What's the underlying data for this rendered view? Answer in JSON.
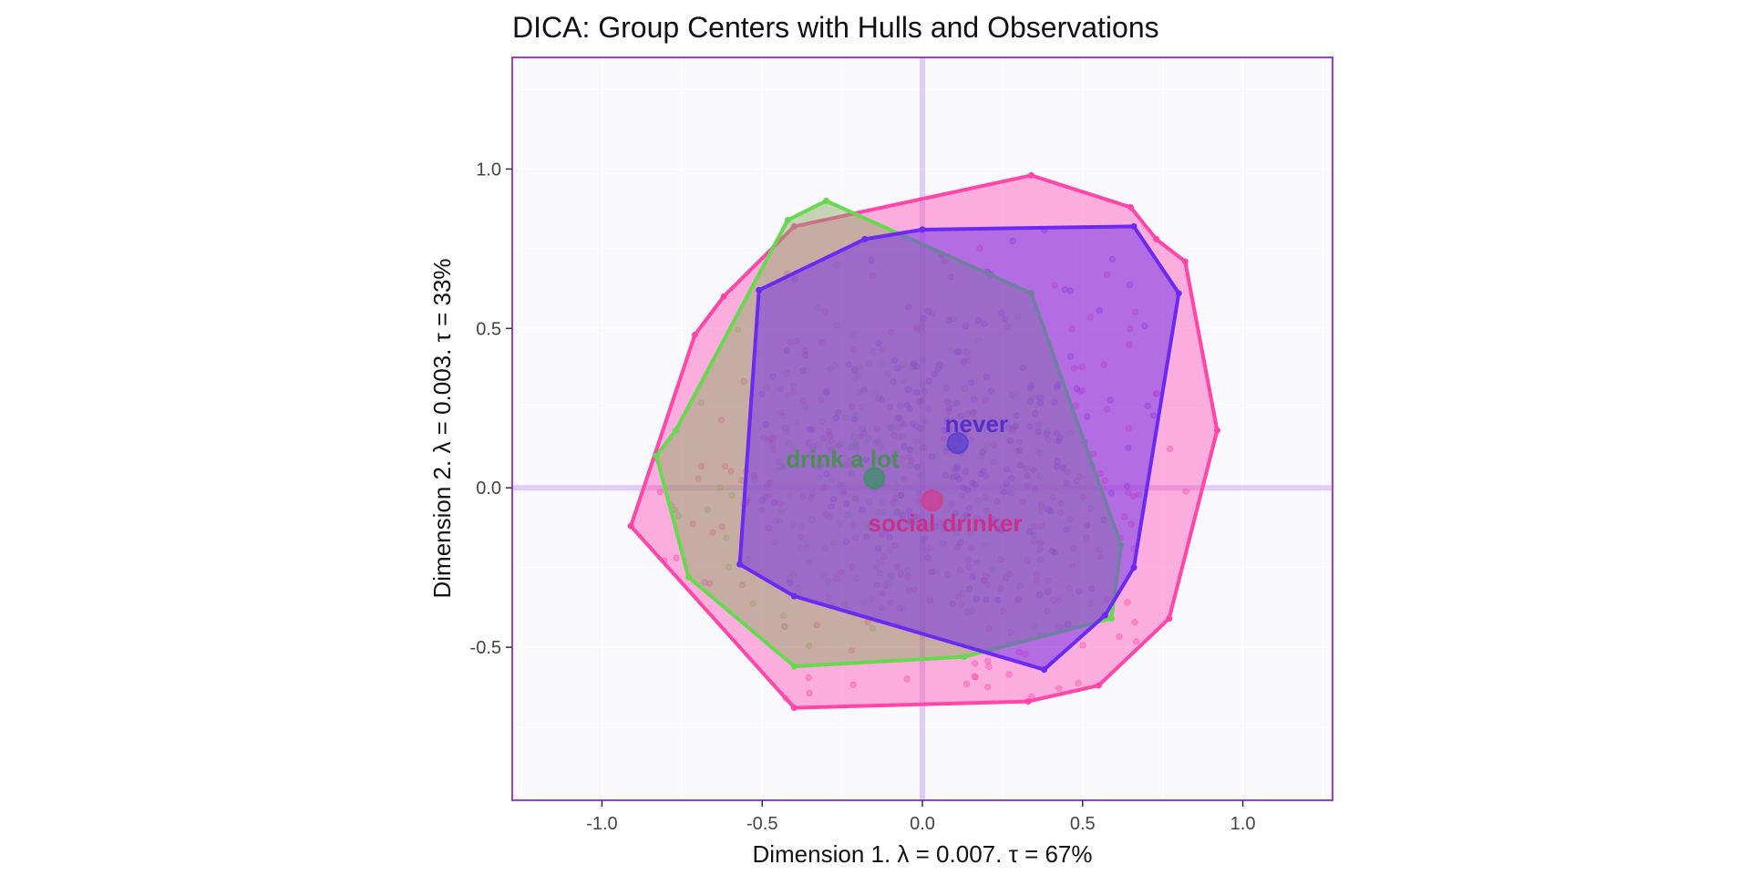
{
  "chart_data": {
    "type": "scatter",
    "title": "DICA: Group Centers with Hulls and Observations",
    "xlabel": "Dimension 1.   λ = 0.007.  τ = 67%",
    "ylabel": "Dimension 2.   λ = 0.003.  τ = 33%",
    "xlim": [
      -1.28,
      1.28
    ],
    "ylim": [
      -0.98,
      1.35
    ],
    "x_ticks": [
      -1.0,
      -0.5,
      0.0,
      0.5,
      1.0
    ],
    "x_tick_labels": [
      "-1.0",
      "-0.5",
      "0.0",
      "0.5",
      "1.0"
    ],
    "y_ticks": [
      -0.5,
      0.0,
      0.5,
      1.0
    ],
    "y_tick_labels": [
      "-0.5",
      "0.0",
      "0.5",
      "1.0"
    ],
    "grid": true,
    "series": [
      {
        "name": "social drinker",
        "color": "#ff3fa6",
        "center": [
          0.03,
          -0.04
        ],
        "hull": [
          [
            -0.91,
            -0.12
          ],
          [
            -0.71,
            0.48
          ],
          [
            -0.62,
            0.6
          ],
          [
            -0.4,
            0.82
          ],
          [
            0.34,
            0.98
          ],
          [
            0.65,
            0.88
          ],
          [
            0.73,
            0.78
          ],
          [
            0.82,
            0.71
          ],
          [
            0.92,
            0.18
          ],
          [
            0.77,
            -0.41
          ],
          [
            0.55,
            -0.62
          ],
          [
            0.33,
            -0.67
          ],
          [
            -0.4,
            -0.69
          ]
        ]
      },
      {
        "name": "drink a lot",
        "color": "#3fd63f",
        "center": [
          -0.15,
          0.03
        ],
        "hull": [
          [
            -0.83,
            0.1
          ],
          [
            -0.77,
            0.18
          ],
          [
            -0.42,
            0.84
          ],
          [
            -0.3,
            0.9
          ],
          [
            0.34,
            0.61
          ],
          [
            0.62,
            -0.18
          ],
          [
            0.59,
            -0.41
          ],
          [
            0.13,
            -0.53
          ],
          [
            -0.4,
            -0.56
          ],
          [
            -0.73,
            -0.28
          ]
        ]
      },
      {
        "name": "never",
        "color": "#6a2af0",
        "center": [
          0.11,
          0.14
        ],
        "hull": [
          [
            -0.57,
            -0.24
          ],
          [
            -0.51,
            0.62
          ],
          [
            -0.18,
            0.78
          ],
          [
            0.0,
            0.81
          ],
          [
            0.66,
            0.82
          ],
          [
            0.8,
            0.61
          ],
          [
            0.66,
            -0.25
          ],
          [
            0.57,
            -0.4
          ],
          [
            0.38,
            -0.57
          ],
          [
            -0.4,
            -0.34
          ]
        ]
      }
    ]
  }
}
